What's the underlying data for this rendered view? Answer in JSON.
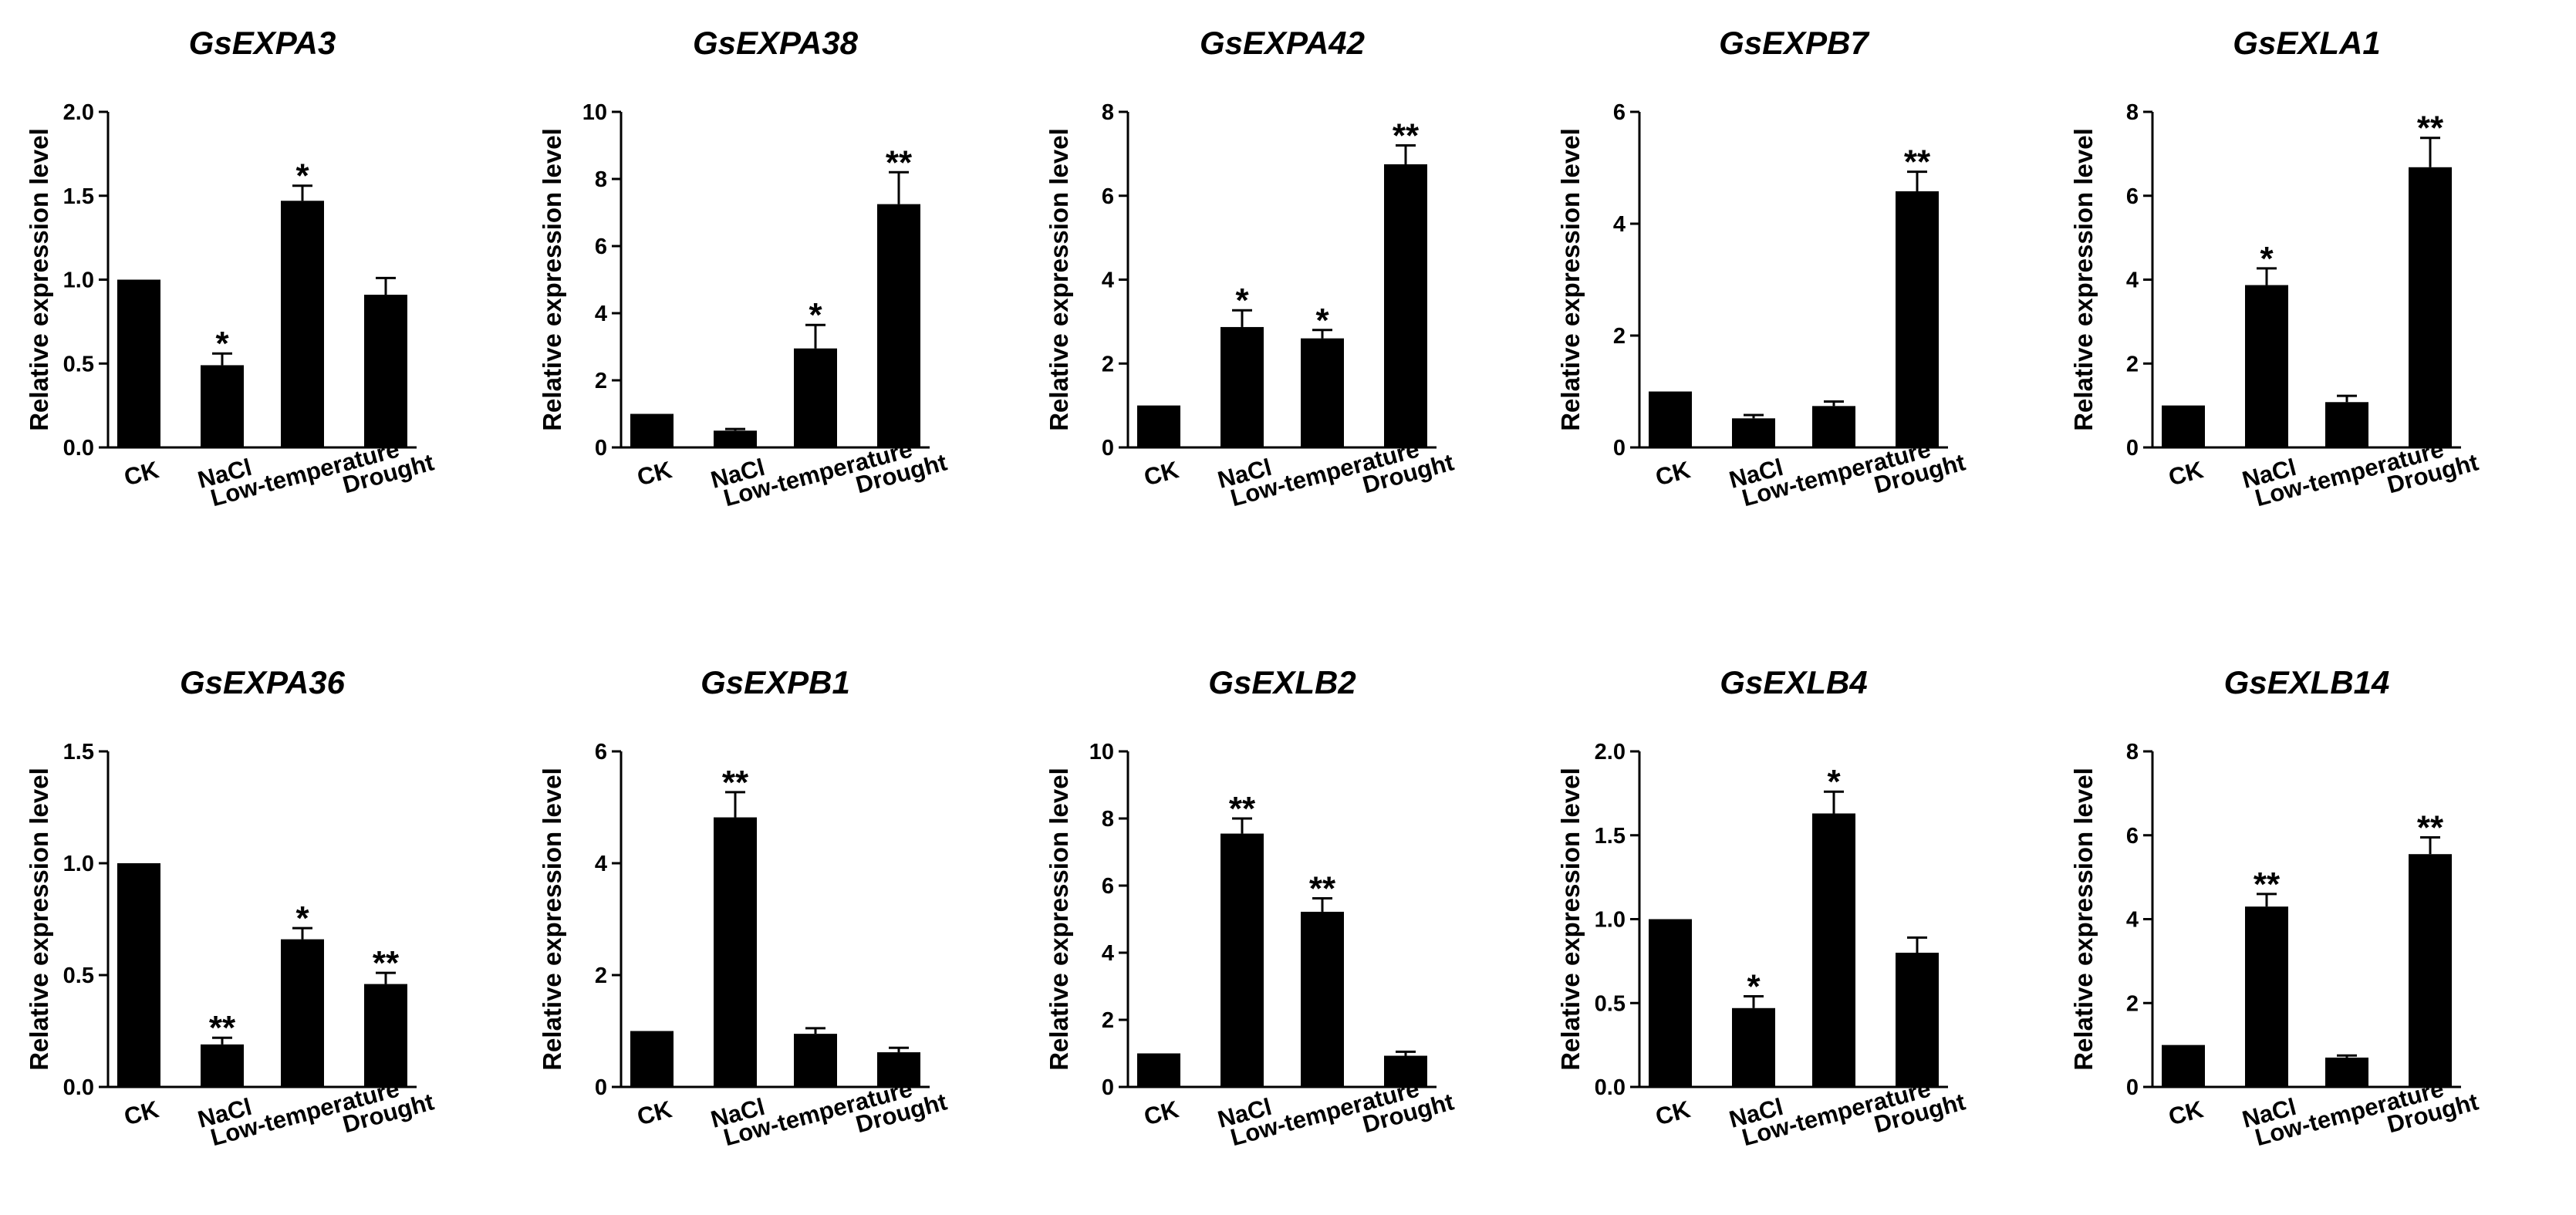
{
  "figure": {
    "name": "expansin-gene-expression-panels"
  },
  "chart_data": [
    {
      "type": "bar",
      "title": "GsEXPA3",
      "ylabel": "Relative expression level",
      "categories": [
        "CK",
        "NaCl",
        "Low-temperature",
        "Drought"
      ],
      "values": [
        1.0,
        0.49,
        1.47,
        0.91
      ],
      "errors": [
        0.0,
        0.07,
        0.09,
        0.1
      ],
      "significance": [
        "",
        "*",
        "*",
        ""
      ],
      "ylim": [
        0,
        2.0
      ],
      "yticks": [
        "0.0",
        "0.5",
        "1.0",
        "1.5",
        "2.0"
      ]
    },
    {
      "type": "bar",
      "title": "GsEXPA38",
      "ylabel": "Relative expression level",
      "categories": [
        "CK",
        "NaCl",
        "Low-temperature",
        "Drought"
      ],
      "values": [
        1.0,
        0.5,
        2.95,
        7.25
      ],
      "errors": [
        0.0,
        0.05,
        0.7,
        0.95
      ],
      "significance": [
        "",
        "",
        "*",
        "**"
      ],
      "ylim": [
        0,
        10
      ],
      "yticks": [
        "0",
        "2",
        "4",
        "6",
        "8",
        "10"
      ]
    },
    {
      "type": "bar",
      "title": "GsEXPA42",
      "ylabel": "Relative expression level",
      "categories": [
        "CK",
        "NaCl",
        "Low-temperature",
        "Drought"
      ],
      "values": [
        1.0,
        2.87,
        2.6,
        6.75
      ],
      "errors": [
        0.0,
        0.4,
        0.2,
        0.45
      ],
      "significance": [
        "",
        "*",
        "*",
        "**"
      ],
      "ylim": [
        0,
        8
      ],
      "yticks": [
        "0",
        "2",
        "4",
        "6",
        "8"
      ]
    },
    {
      "type": "bar",
      "title": "GsEXPB7",
      "ylabel": "Relative expression level",
      "categories": [
        "CK",
        "NaCl",
        "Low-temperature",
        "Drought"
      ],
      "values": [
        1.0,
        0.52,
        0.74,
        4.58
      ],
      "errors": [
        0.0,
        0.06,
        0.08,
        0.35
      ],
      "significance": [
        "",
        "",
        "",
        "**"
      ],
      "ylim": [
        0,
        6
      ],
      "yticks": [
        "0",
        "2",
        "4",
        "6"
      ]
    },
    {
      "type": "bar",
      "title": "GsEXLA1",
      "ylabel": "Relative expression level",
      "categories": [
        "CK",
        "NaCl",
        "Low-temperature",
        "Drought"
      ],
      "values": [
        1.0,
        3.87,
        1.08,
        6.68
      ],
      "errors": [
        0.0,
        0.4,
        0.15,
        0.7
      ],
      "significance": [
        "",
        "*",
        "",
        "**"
      ],
      "ylim": [
        0,
        8
      ],
      "yticks": [
        "0",
        "2",
        "4",
        "6",
        "8"
      ]
    },
    {
      "type": "bar",
      "title": "GsEXPA36",
      "ylabel": "Relative expression level",
      "categories": [
        "CK",
        "NaCl",
        "Low-temperature",
        "Drought"
      ],
      "values": [
        1.0,
        0.19,
        0.66,
        0.46
      ],
      "errors": [
        0.0,
        0.03,
        0.05,
        0.05
      ],
      "significance": [
        "",
        "**",
        "*",
        "**"
      ],
      "ylim": [
        0,
        1.5
      ],
      "yticks": [
        "0.0",
        "0.5",
        "1.0",
        "1.5"
      ]
    },
    {
      "type": "bar",
      "title": "GsEXPB1",
      "ylabel": "Relative expression level",
      "categories": [
        "CK",
        "NaCl",
        "Low-temperature",
        "Drought"
      ],
      "values": [
        1.0,
        4.82,
        0.95,
        0.62
      ],
      "errors": [
        0.0,
        0.45,
        0.1,
        0.08
      ],
      "significance": [
        "",
        "**",
        "",
        ""
      ],
      "ylim": [
        0,
        6
      ],
      "yticks": [
        "0",
        "2",
        "4",
        "6"
      ]
    },
    {
      "type": "bar",
      "title": "GsEXLB2",
      "ylabel": "Relative expression level",
      "categories": [
        "CK",
        "NaCl",
        "Low-temperature",
        "Drought"
      ],
      "values": [
        1.0,
        7.55,
        5.22,
        0.93
      ],
      "errors": [
        0.0,
        0.45,
        0.4,
        0.12
      ],
      "significance": [
        "",
        "**",
        "**",
        ""
      ],
      "ylim": [
        0,
        10
      ],
      "yticks": [
        "0",
        "2",
        "4",
        "6",
        "8",
        "10"
      ]
    },
    {
      "type": "bar",
      "title": "GsEXLB4",
      "ylabel": "Relative expression level",
      "categories": [
        "CK",
        "NaCl",
        "Low-temperature",
        "Drought"
      ],
      "values": [
        1.0,
        0.47,
        1.63,
        0.8
      ],
      "errors": [
        0.0,
        0.07,
        0.13,
        0.09
      ],
      "significance": [
        "",
        "*",
        "*",
        ""
      ],
      "ylim": [
        0,
        2.0
      ],
      "yticks": [
        "0.0",
        "0.5",
        "1.0",
        "1.5",
        "2.0"
      ]
    },
    {
      "type": "bar",
      "title": "GsEXLB14",
      "ylabel": "Relative expression level",
      "categories": [
        "CK",
        "NaCl",
        "Low-temperature",
        "Drought"
      ],
      "values": [
        1.0,
        4.3,
        0.7,
        5.55
      ],
      "errors": [
        0.0,
        0.3,
        0.05,
        0.4
      ],
      "significance": [
        "",
        "**",
        "",
        "**"
      ],
      "ylim": [
        0,
        8
      ],
      "yticks": [
        "0",
        "2",
        "4",
        "6",
        "8"
      ]
    }
  ]
}
